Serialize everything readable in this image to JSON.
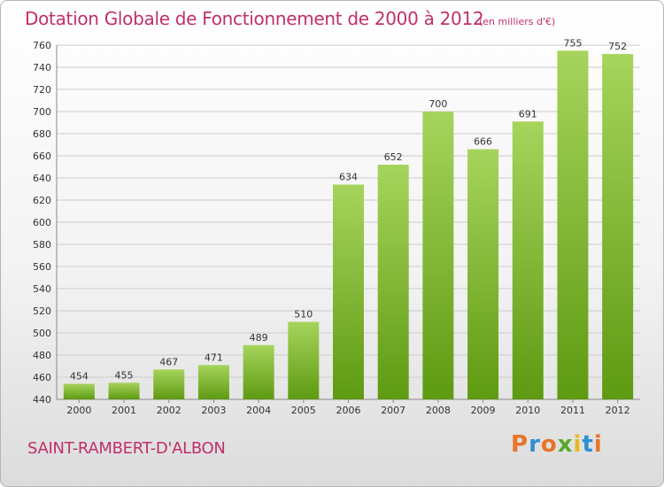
{
  "title": "Dotation Globale de Fonctionnement de 2000 à 2012",
  "unit_note": "(en milliers d'€)",
  "commune": "SAINT-RAMBERT-D'ALBON",
  "logo": {
    "text": "Proxiti",
    "colors": [
      "#e8742a",
      "#2e8fd1",
      "#e8742a",
      "#5aa82a",
      "#e8b820",
      "#2e8fd1",
      "#e8742a"
    ]
  },
  "colors": {
    "accent": "#c0306a",
    "bar_top": "#a6d45c",
    "bar_bottom": "#5e9a12",
    "grid": "#cccccc"
  },
  "chart_data": {
    "type": "bar",
    "categories": [
      "2000",
      "2001",
      "2002",
      "2003",
      "2004",
      "2005",
      "2006",
      "2007",
      "2008",
      "2009",
      "2010",
      "2011",
      "2012"
    ],
    "values": [
      454,
      455,
      467,
      471,
      489,
      510,
      634,
      652,
      700,
      666,
      691,
      755,
      752
    ],
    "title": "Dotation Globale de Fonctionnement de 2000 à 2012",
    "ylim": [
      440,
      760
    ],
    "ytick_step": 20,
    "grid": true
  }
}
